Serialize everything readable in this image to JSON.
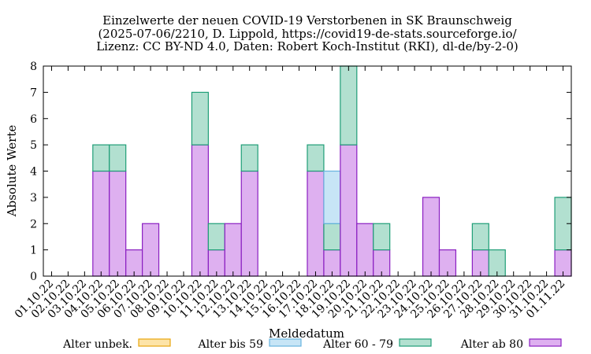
{
  "chart_data": {
    "type": "bar",
    "stacked": true,
    "title_lines": [
      "Einzelwerte der neuen COVID-19 Verstorbenen in SK Braunschweig",
      "(2025-07-06/2210, D. Lippold, https://covid19-de-stats.sourceforge.io/",
      "Lizenz: CC BY-ND 4.0, Daten: Robert Koch-Institut (RKI), dl-de/by-2-0)"
    ],
    "xlabel": "Meldedatum",
    "ylabel": "Absolute Werte",
    "ylim": [
      0,
      8
    ],
    "yticks": [
      "0",
      "1",
      "2",
      "3",
      "4",
      "5",
      "6",
      "7",
      "8"
    ],
    "grid": false,
    "legend_position": "bottom",
    "categories": [
      "01.10.22",
      "02.10.22",
      "03.10.22",
      "04.10.22",
      "05.10.22",
      "06.10.22",
      "07.10.22",
      "08.10.22",
      "09.10.22",
      "10.10.22",
      "11.10.22",
      "12.10.22",
      "13.10.22",
      "14.10.22",
      "15.10.22",
      "16.10.22",
      "17.10.22",
      "18.10.22",
      "19.10.22",
      "20.10.22",
      "21.10.22",
      "22.10.22",
      "23.10.22",
      "24.10.22",
      "25.10.22",
      "26.10.22",
      "27.10.22",
      "28.10.22",
      "29.10.22",
      "30.10.22",
      "31.10.22",
      "01.11.22"
    ],
    "series": [
      {
        "name": "Alter unbek.",
        "fill": "#fde4a8",
        "stroke": "#e8a60f",
        "values": [
          0,
          0,
          0,
          0,
          0,
          0,
          0,
          0,
          0,
          0,
          0,
          0,
          0,
          0,
          0,
          0,
          0,
          0,
          0,
          0,
          0,
          0,
          0,
          0,
          0,
          0,
          0,
          0,
          0,
          0,
          0,
          0
        ]
      },
      {
        "name": "Alter bis 59",
        "fill": "#c7e5f6",
        "stroke": "#67b3de",
        "values": [
          0,
          0,
          0,
          0,
          0,
          0,
          0,
          0,
          0,
          0,
          0,
          0,
          0,
          0,
          0,
          0,
          0,
          2,
          0,
          0,
          0,
          0,
          0,
          0,
          0,
          0,
          0,
          0,
          0,
          0,
          0,
          0
        ]
      },
      {
        "name": "Alter 60 - 79",
        "fill": "#b2e0d0",
        "stroke": "#1f9e77",
        "values": [
          0,
          0,
          0,
          1,
          1,
          0,
          0,
          0,
          0,
          2,
          1,
          0,
          1,
          0,
          0,
          0,
          1,
          1,
          3,
          0,
          1,
          0,
          0,
          0,
          0,
          0,
          1,
          1,
          0,
          0,
          0,
          2
        ]
      },
      {
        "name": "Alter ab 80",
        "fill": "#deb0f0",
        "stroke": "#8a1fc1",
        "values": [
          0,
          0,
          0,
          4,
          4,
          1,
          2,
          0,
          0,
          5,
          1,
          2,
          4,
          0,
          0,
          0,
          4,
          1,
          5,
          2,
          1,
          0,
          0,
          3,
          1,
          0,
          1,
          0,
          0,
          0,
          0,
          1
        ]
      }
    ]
  }
}
